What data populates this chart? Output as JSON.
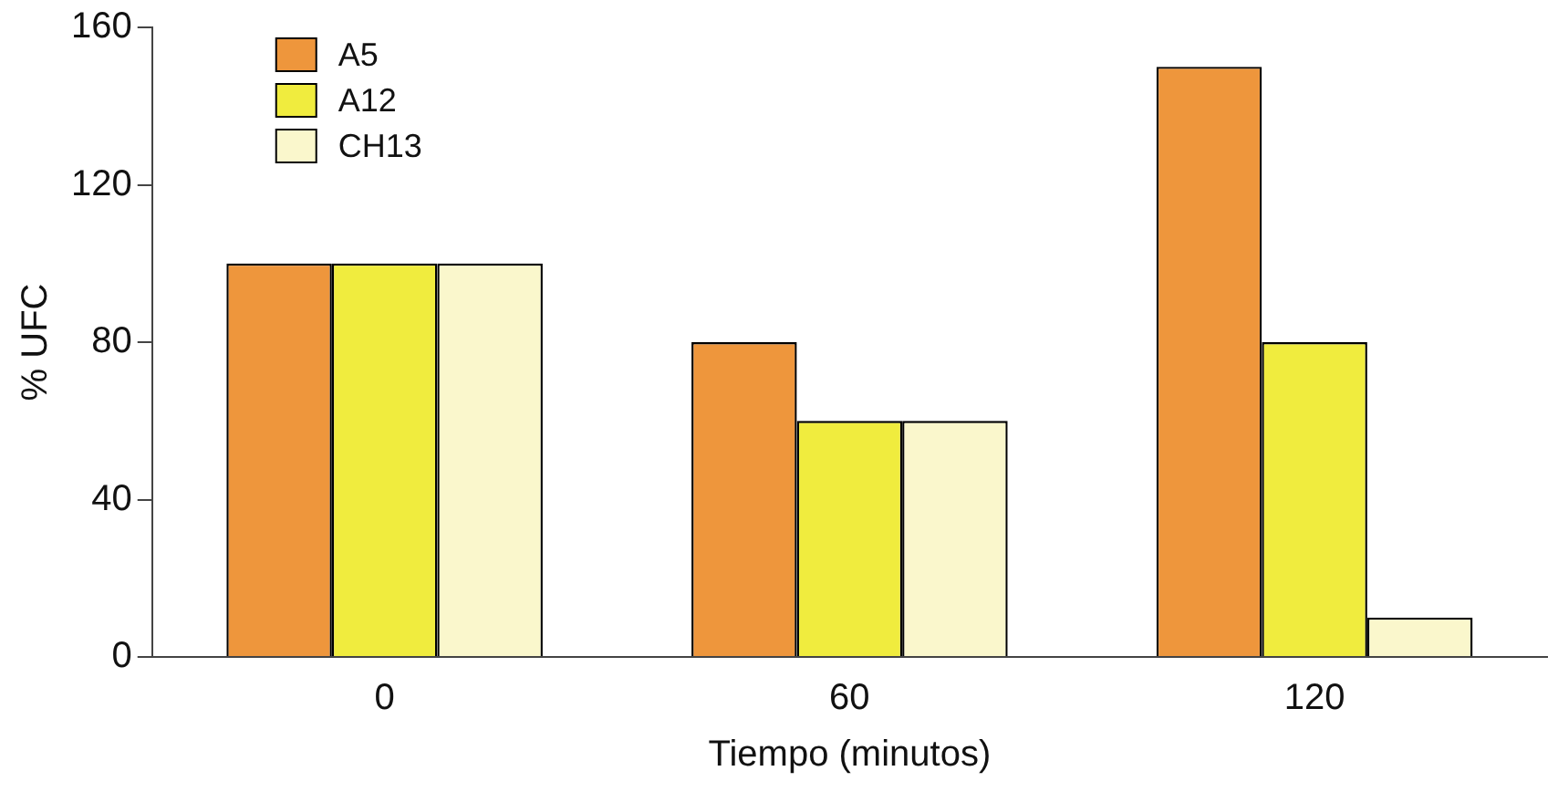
{
  "chart_data": {
    "type": "bar",
    "xlabel": "Tiempo (minutos)",
    "ylabel": "% UFC",
    "categories": [
      "0",
      "60",
      "120"
    ],
    "series": [
      {
        "name": "A5",
        "color": "#ee963c",
        "values": [
          100,
          80,
          150
        ]
      },
      {
        "name": "A12",
        "color": "#f0ec3e",
        "values": [
          100,
          60,
          80
        ]
      },
      {
        "name": "CH13",
        "color": "#faf7cc",
        "values": [
          100,
          60,
          10
        ]
      }
    ],
    "ylim": [
      0,
      160
    ],
    "yticks": [
      0,
      40,
      80,
      120,
      160
    ],
    "grid": false,
    "legend": "top left"
  }
}
